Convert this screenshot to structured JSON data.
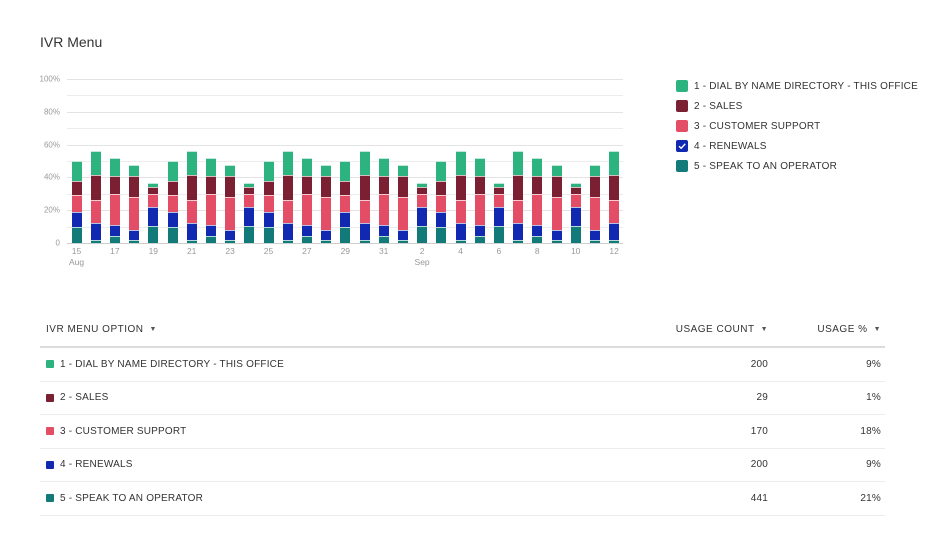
{
  "title": "IVR Menu",
  "colors": {
    "opt1": "#2db37f",
    "opt2": "#7a2032",
    "opt3": "#e44d66",
    "opt4": "#1128b0",
    "opt5": "#137a7a"
  },
  "legend": [
    {
      "label": "1 - DIAL BY NAME DIRECTORY - THIS OFFICE",
      "color": "#2db37f",
      "checked": false
    },
    {
      "label": "2 - SALES",
      "color": "#7a2032",
      "checked": false
    },
    {
      "label": "3 - CUSTOMER SUPPORT",
      "color": "#e44d66",
      "checked": false
    },
    {
      "label": "4 - RENEWALS",
      "color": "#1128b0",
      "checked": true
    },
    {
      "label": "5 - SPEAK TO AN OPERATOR",
      "color": "#137a7a",
      "checked": false
    }
  ],
  "table": {
    "headers": {
      "option": "IVR MENU OPTION",
      "count": "USAGE COUNT",
      "pct": "USAGE %"
    },
    "rows": [
      {
        "label": "1 - DIAL BY NAME DIRECTORY - THIS OFFICE",
        "color": "#2db37f",
        "count": "200",
        "pct": "9%"
      },
      {
        "label": "2 - SALES",
        "color": "#7a2032",
        "count": "29",
        "pct": "1%"
      },
      {
        "label": "3 - CUSTOMER SUPPORT",
        "color": "#e44d66",
        "count": "170",
        "pct": "18%"
      },
      {
        "label": "4 - RENEWALS",
        "color": "#1128b0",
        "count": "200",
        "pct": "9%"
      },
      {
        "label": "5 - SPEAK TO AN OPERATOR",
        "color": "#137a7a",
        "count": "441",
        "pct": "21%"
      }
    ]
  },
  "chart_data": {
    "type": "bar",
    "stacked": true,
    "title": "IVR Menu",
    "xlabel": "",
    "ylabel": "",
    "ylim": [
      0,
      100
    ],
    "yticks": [
      "0",
      "20%",
      "40%",
      "60%",
      "80%",
      "100%"
    ],
    "grid": true,
    "legend_position": "right",
    "categories": [
      "Aug 15",
      "Aug 16",
      "Aug 17",
      "Aug 18",
      "Aug 19",
      "Aug 20",
      "Aug 21",
      "Aug 22",
      "Aug 23",
      "Aug 24",
      "Aug 25",
      "Aug 26",
      "Aug 27",
      "Aug 28",
      "Aug 29",
      "Aug 30",
      "Aug 31",
      "Sep 1",
      "Sep 2",
      "Sep 3",
      "Sep 4",
      "Sep 5",
      "Sep 6",
      "Sep 7",
      "Sep 8",
      "Sep 9",
      "Sep 10",
      "Sep 11",
      "Sep 12"
    ],
    "xtick_labels": [
      {
        "index": 0,
        "label": "15",
        "sub": "Aug"
      },
      {
        "index": 2,
        "label": "17"
      },
      {
        "index": 4,
        "label": "19"
      },
      {
        "index": 6,
        "label": "21"
      },
      {
        "index": 8,
        "label": "23"
      },
      {
        "index": 10,
        "label": "25"
      },
      {
        "index": 12,
        "label": "27"
      },
      {
        "index": 14,
        "label": "29"
      },
      {
        "index": 16,
        "label": "31"
      },
      {
        "index": 18,
        "label": "2",
        "sub": "Sep"
      },
      {
        "index": 20,
        "label": "4"
      },
      {
        "index": 22,
        "label": "6"
      },
      {
        "index": 24,
        "label": "8"
      },
      {
        "index": 26,
        "label": "10"
      },
      {
        "index": 28,
        "label": "12"
      }
    ],
    "series": [
      {
        "name": "5 - SPEAK TO AN OPERATOR",
        "color": "#137a7a",
        "values": [
          10,
          2,
          4,
          2,
          10.5,
          10,
          2,
          4,
          2,
          10.5,
          10,
          2,
          4,
          2,
          10,
          2,
          4,
          2,
          10.5,
          10,
          2,
          4,
          10.5,
          2,
          4,
          2,
          10.5,
          2,
          2
        ]
      },
      {
        "name": "4 - RENEWALS",
        "color": "#1128b0",
        "values": [
          9,
          10,
          7,
          6,
          11.5,
          9,
          10,
          7,
          6,
          11.5,
          9,
          10,
          7,
          6,
          9,
          10,
          7,
          6,
          11.5,
          9,
          10,
          7,
          11.5,
          10,
          7,
          6,
          11.5,
          6,
          10
        ]
      },
      {
        "name": "3 - CUSTOMER SUPPORT",
        "color": "#e44d66",
        "values": [
          10,
          14,
          19,
          20,
          8,
          10,
          14,
          19,
          20,
          8,
          10,
          14,
          19,
          20,
          10,
          14,
          19,
          20,
          8,
          10,
          14,
          19,
          8,
          14,
          19,
          20,
          8,
          20,
          14
        ]
      },
      {
        "name": "2 - SALES",
        "color": "#7a2032",
        "values": [
          9,
          15.5,
          11,
          13,
          4,
          9,
          15.5,
          11,
          13,
          4,
          9,
          15.5,
          11,
          13,
          9,
          15.5,
          11,
          13,
          4,
          9,
          15.5,
          11,
          4,
          15.5,
          11,
          13,
          4,
          13,
          15.5
        ]
      },
      {
        "name": "1 - DIAL BY NAME DIRECTORY - THIS OFFICE",
        "color": "#2db37f",
        "values": [
          12,
          14.5,
          11,
          6.5,
          2.5,
          12,
          14.5,
          11,
          6.5,
          2.5,
          12,
          14.5,
          11,
          6.5,
          12,
          14.5,
          11,
          6.5,
          2.5,
          12,
          14.5,
          11,
          2.5,
          14.5,
          11,
          6.5,
          2.5,
          6.5,
          14.5
        ]
      }
    ]
  }
}
